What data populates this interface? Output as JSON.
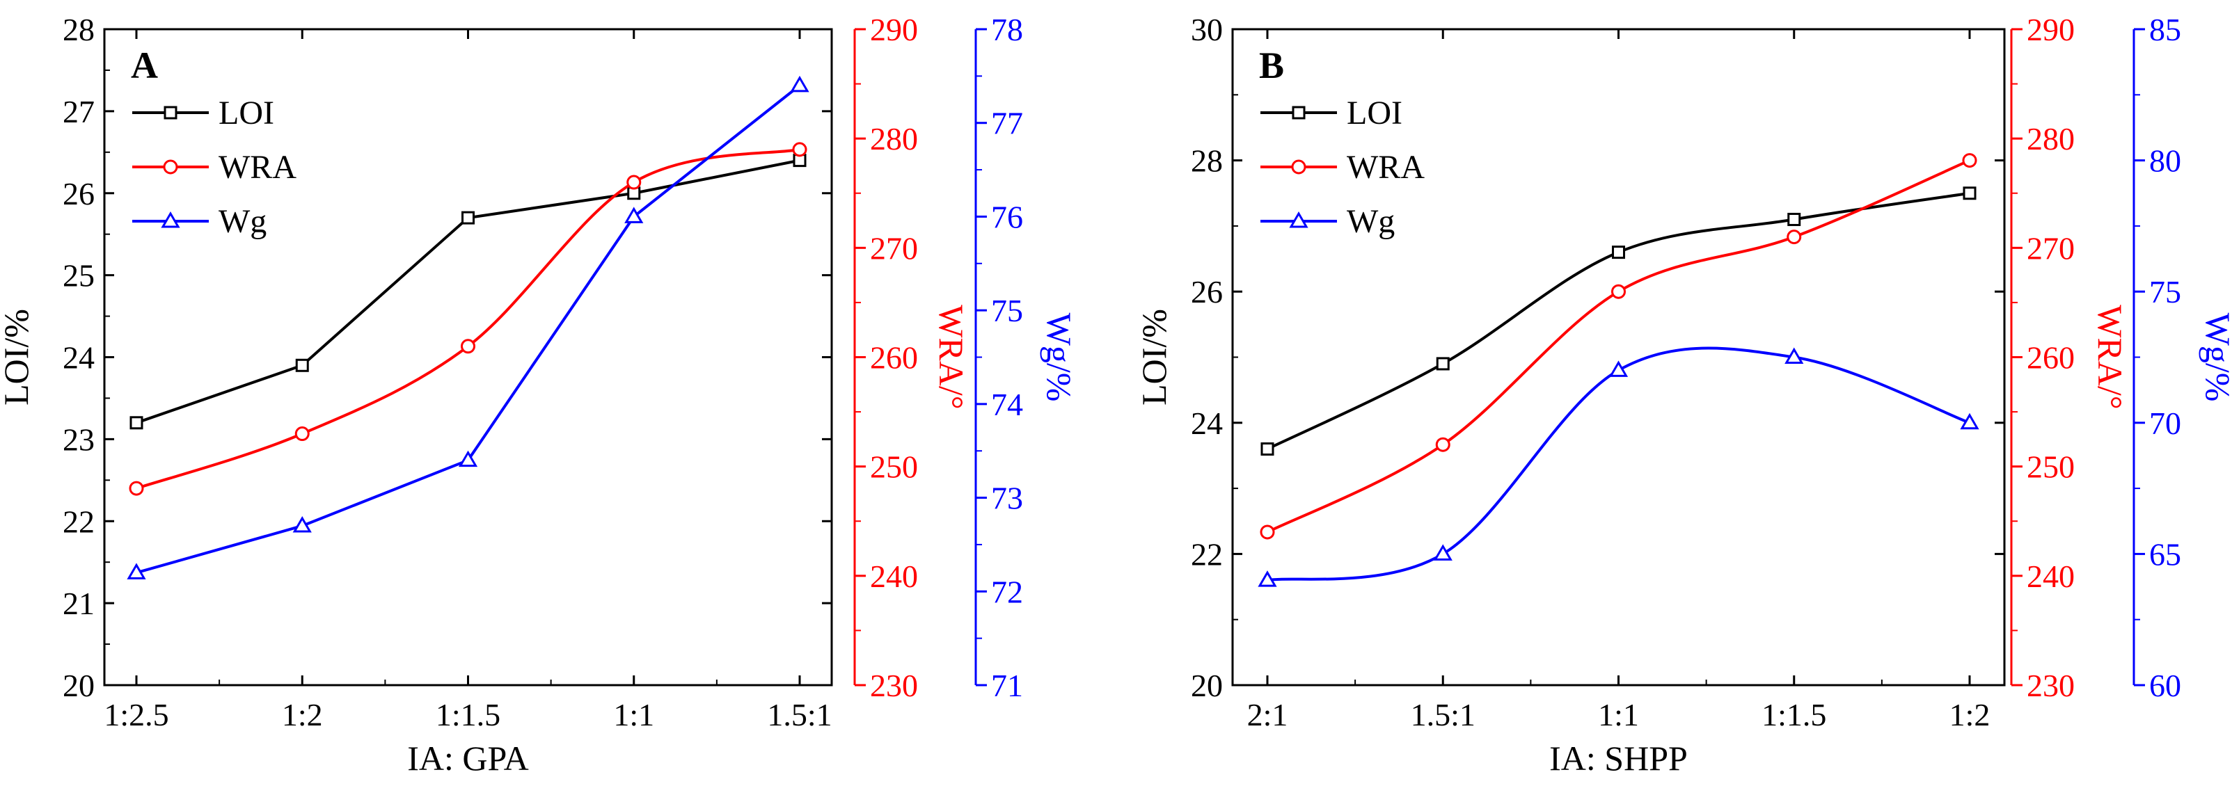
{
  "colors": {
    "loi": "#000000",
    "wra": "#ff0000",
    "wg": "#0000ff"
  },
  "chart_data": [
    {
      "type": "line",
      "panel_label": "A",
      "xlabel": "IA: GPA",
      "categories": [
        "1:2.5",
        "1:2",
        "1:1.5",
        "1:1",
        "1.5:1"
      ],
      "axes": {
        "left": {
          "label": "LOI/%",
          "ylim": [
            20,
            28
          ],
          "ticks": [
            20,
            21,
            22,
            23,
            24,
            25,
            26,
            27,
            28
          ]
        },
        "right1": {
          "label": "WRA/°",
          "ylim": [
            230,
            290
          ],
          "ticks": [
            230,
            240,
            250,
            260,
            270,
            280,
            290
          ]
        },
        "right2": {
          "label": "Wg/%",
          "ylim": [
            71,
            78
          ],
          "ticks": [
            71,
            72,
            73,
            74,
            75,
            76,
            77,
            78
          ]
        }
      },
      "legend_position": "top-left",
      "series": [
        {
          "name": "LOI",
          "axis": "left",
          "color_key": "loi",
          "marker": "square",
          "curve": "linear",
          "values": [
            23.2,
            23.9,
            25.7,
            26.0,
            26.4
          ]
        },
        {
          "name": "WRA",
          "axis": "right1",
          "color_key": "wra",
          "marker": "circle",
          "curve": "smooth",
          "values": [
            248.0,
            253.0,
            261.0,
            276.0,
            279.0
          ]
        },
        {
          "name": "Wg",
          "axis": "right2",
          "color_key": "wg",
          "marker": "triangle",
          "curve": "linear",
          "values": [
            72.2,
            72.7,
            73.4,
            76.0,
            77.4
          ]
        }
      ]
    },
    {
      "type": "line",
      "panel_label": "B",
      "xlabel": "IA: SHPP",
      "categories": [
        "2:1",
        "1.5:1",
        "1:1",
        "1:1.5",
        "1:2"
      ],
      "axes": {
        "left": {
          "label": "LOI/%",
          "ylim": [
            20,
            30
          ],
          "ticks": [
            20,
            22,
            24,
            26,
            28,
            30
          ]
        },
        "right1": {
          "label": "WRA/°",
          "ylim": [
            230,
            290
          ],
          "ticks": [
            230,
            240,
            250,
            260,
            270,
            280,
            290
          ]
        },
        "right2": {
          "label": "Wg/%",
          "ylim": [
            60,
            85
          ],
          "ticks": [
            60,
            65,
            70,
            75,
            80,
            85
          ]
        }
      },
      "legend_position": "top-left",
      "series": [
        {
          "name": "LOI",
          "axis": "left",
          "color_key": "loi",
          "marker": "square",
          "curve": "smooth",
          "values": [
            23.6,
            24.9,
            26.6,
            27.1,
            27.5
          ]
        },
        {
          "name": "WRA",
          "axis": "right1",
          "color_key": "wra",
          "marker": "circle",
          "curve": "smooth",
          "values": [
            244.0,
            252.0,
            266.0,
            271.0,
            278.0
          ]
        },
        {
          "name": "Wg",
          "axis": "right2",
          "color_key": "wg",
          "marker": "triangle",
          "curve": "smooth",
          "values": [
            64.0,
            65.0,
            72.0,
            72.5,
            70.0
          ]
        }
      ]
    }
  ]
}
